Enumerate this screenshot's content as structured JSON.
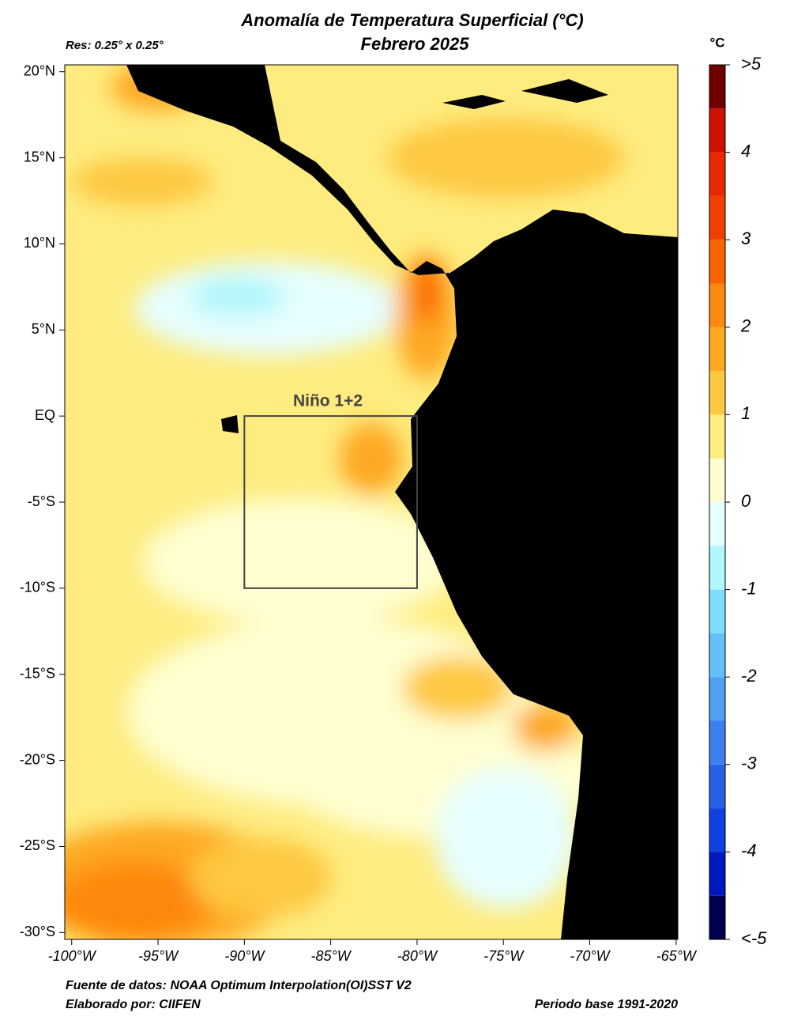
{
  "map": {
    "title": "Anomalía de Temperatura Superficial (°C)",
    "subtitle": "Febrero 2025",
    "resolution": "Res: 0.25° x 0.25°",
    "xlim": [
      -100.4,
      -64.9
    ],
    "ylim": [
      -30.4,
      20.4
    ],
    "xticks": [
      {
        "value": -100,
        "label": "-100°W"
      },
      {
        "value": -95,
        "label": "-95°W"
      },
      {
        "value": -90,
        "label": "-90°W"
      },
      {
        "value": -85,
        "label": "-85°W"
      },
      {
        "value": -80,
        "label": "-80°W"
      },
      {
        "value": -75,
        "label": "-75°W"
      },
      {
        "value": -70,
        "label": "-70°W"
      },
      {
        "value": -65,
        "label": "-65°W"
      }
    ],
    "yticks": [
      {
        "value": 20,
        "label": "20°N"
      },
      {
        "value": 15,
        "label": "15°N"
      },
      {
        "value": 10,
        "label": "10°N"
      },
      {
        "value": 5,
        "label": "5°N"
      },
      {
        "value": 0,
        "label": "EQ"
      },
      {
        "value": -5,
        "label": "-5°S"
      },
      {
        "value": -10,
        "label": "-10°S"
      },
      {
        "value": -15,
        "label": "-15°S"
      },
      {
        "value": -20,
        "label": "-20°S"
      },
      {
        "value": -25,
        "label": "-25°S"
      },
      {
        "value": -30,
        "label": "-30°S"
      }
    ],
    "region": {
      "label": "Niño 1+2",
      "lon": [
        -90,
        -80
      ],
      "lat": [
        0,
        -10
      ]
    },
    "colorbar": {
      "unit": "°C",
      "levels": [
        -5,
        -4.5,
        -4,
        -3.5,
        -3,
        -2.5,
        -2,
        -1.5,
        -1,
        -0.5,
        0,
        0.5,
        1,
        1.5,
        2,
        2.5,
        3,
        3.5,
        4,
        4.5,
        5
      ],
      "colors": [
        "#000050",
        "#0018c0",
        "#1040e0",
        "#2860e8",
        "#3c80f0",
        "#50a0f4",
        "#64c0f8",
        "#80dcfc",
        "#b0f6fc",
        "#e6fefe",
        "#fefed0",
        "#feec80",
        "#fec840",
        "#fea820",
        "#fe8810",
        "#fa6400",
        "#f04000",
        "#e82800",
        "#d01000",
        "#700000"
      ],
      "ticks": [
        {
          "value": -5,
          "label": "<-5"
        },
        -4,
        -3,
        -2,
        -1,
        0,
        1,
        2,
        3,
        4,
        {
          "value": 5,
          "label": ">5"
        }
      ]
    },
    "source": "Fuente de datos: NOAA Optimum Interpolation(OI)SST V2",
    "credit": "Elaborado por: CIIFEN",
    "base_period": "Periodo base 1991-2020"
  }
}
